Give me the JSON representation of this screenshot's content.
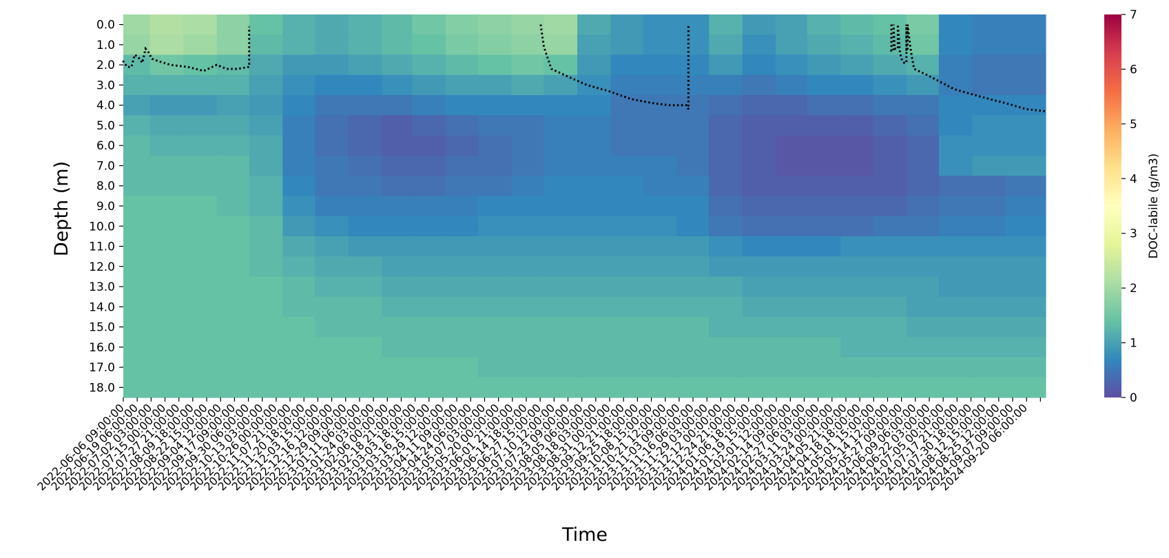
{
  "chart_data": {
    "type": "heatmap",
    "xlabel": "Time",
    "ylabel": "Depth (m)",
    "colorbar_label": "DOC-labile  (g/m3)",
    "colormap": "Spectral_r",
    "colorbar_range": [
      0,
      7
    ],
    "colorbar_ticks": [
      "0",
      "1",
      "2",
      "3",
      "4",
      "5",
      "6",
      "7"
    ],
    "x_start": "2022-06-06 09:00:00",
    "x_end": "2024-10-08 00:00:00",
    "y_tick_labels": [
      "0.0",
      "1.0",
      "2.0",
      "3.0",
      "4.0",
      "5.0",
      "6.0",
      "7.0",
      "8.0",
      "9.0",
      "10.0",
      "11.0",
      "12.0",
      "13.0",
      "14.0",
      "15.0",
      "16.0",
      "17.0",
      "18.0"
    ],
    "x_tick_labels": [
      "2022-06-06 09:00:00",
      "2022-06-19 06:00:00",
      "2022-07-02 03:00:00",
      "2022-07-15 00:00:00",
      "2022-07-27 21:00:00",
      "2022-08-09 18:00:00",
      "2022-08-22 15:00:00",
      "2022-09-04 12:00:00",
      "2022-09-17 09:00:00",
      "2022-09-30 06:00:00",
      "2022-10-13 03:00:00",
      "2022-10-26 00:00:00",
      "2022-11-07 21:00:00",
      "2022-11-20 18:00:00",
      "2022-12-03 15:00:00",
      "2022-12-16 12:00:00",
      "2022-12-29 09:00:00",
      "2023-01-11 06:00:00",
      "2023-01-24 03:00:00",
      "2023-02-06 00:00:00",
      "2023-02-18 21:00:00",
      "2023-03-03 18:00:00",
      "2023-03-16 15:00:00",
      "2023-03-29 12:00:00",
      "2023-04-11 09:00:00",
      "2023-04-24 06:00:00",
      "2023-05-07 03:00:00",
      "2023-05-20 00:00:00",
      "2023-06-01 21:00:00",
      "2023-06-14 18:00:00",
      "2023-06-27 15:00:00",
      "2023-07-10 12:00:00",
      "2023-07-23 09:00:00",
      "2023-08-05 06:00:00",
      "2023-08-18 03:00:00",
      "2023-08-31 00:00:00",
      "2023-09-12 21:00:00",
      "2023-09-25 18:00:00",
      "2023-10-08 15:00:00",
      "2023-10-21 12:00:00",
      "2023-11-03 09:00:00",
      "2023-11-16 06:00:00",
      "2023-11-29 03:00:00",
      "2023-12-12 00:00:00",
      "2023-12-24 21:00:00",
      "2024-01-06 18:00:00",
      "2024-01-19 15:00:00",
      "2024-02-01 12:00:00",
      "2024-02-14 09:00:00",
      "2024-02-27 06:00:00",
      "2024-03-11 03:00:00",
      "2024-03-24 00:00:00",
      "2024-04-05 21:00:00",
      "2024-04-18 18:00:00",
      "2024-05-01 15:00:00",
      "2024-05-14 12:00:00",
      "2024-05-27 09:00:00",
      "2024-06-09 06:00:00",
      "2024-06-22 03:00:00",
      "2024-07-05 00:00:00",
      "2024-07-17 21:00:00",
      "2024-07-30 18:00:00",
      "2024-08-12 15:00:00",
      "2024-08-25 12:00:00",
      "2024-09-07 09:00:00",
      "2024-09-20 06:00:00"
    ],
    "extra_tick_marks": 4,
    "depth_rows": [
      0,
      1,
      2,
      3,
      4,
      5,
      6,
      7,
      8,
      9,
      10,
      11,
      12,
      13,
      14,
      15,
      16,
      17,
      18
    ],
    "time_cols_months": [
      "2022-06",
      "2022-07",
      "2022-08",
      "2022-09",
      "2022-10",
      "2022-11",
      "2022-12",
      "2023-01",
      "2023-02",
      "2023-03",
      "2023-04",
      "2023-05",
      "2023-06",
      "2023-07",
      "2023-08",
      "2023-09",
      "2023-10",
      "2023-11",
      "2023-12",
      "2024-01",
      "2024-02",
      "2024-03",
      "2024-04",
      "2024-05",
      "2024-06",
      "2024-07",
      "2024-08",
      "2024-09"
    ],
    "values": [
      [
        2.0,
        2.2,
        2.1,
        1.8,
        1.4,
        1.2,
        1.1,
        1.2,
        1.3,
        1.5,
        1.7,
        1.8,
        1.9,
        2.0,
        1.1,
        0.9,
        0.8,
        0.8,
        1.2,
        0.9,
        1.0,
        1.2,
        1.3,
        1.4,
        1.6,
        0.7,
        0.6,
        0.6
      ],
      [
        1.9,
        2.1,
        2.0,
        1.8,
        1.3,
        1.2,
        1.1,
        1.2,
        1.3,
        1.4,
        1.6,
        1.7,
        1.8,
        1.9,
        1.0,
        0.9,
        0.8,
        0.8,
        1.1,
        0.8,
        1.0,
        1.1,
        1.2,
        1.3,
        1.5,
        0.7,
        0.6,
        0.6
      ],
      [
        1.3,
        1.5,
        1.4,
        1.3,
        1.1,
        0.9,
        0.9,
        1.0,
        1.1,
        1.2,
        1.3,
        1.4,
        1.5,
        1.4,
        0.9,
        0.7,
        0.7,
        0.7,
        0.9,
        0.7,
        0.8,
        0.9,
        1.0,
        1.1,
        1.2,
        0.6,
        0.5,
        0.5
      ],
      [
        1.2,
        1.2,
        1.2,
        1.2,
        1.0,
        0.8,
        0.7,
        0.7,
        0.8,
        0.9,
        1.0,
        1.0,
        1.1,
        1.0,
        0.8,
        0.6,
        0.6,
        0.6,
        0.6,
        0.5,
        0.6,
        0.7,
        0.7,
        0.8,
        0.9,
        0.6,
        0.5,
        0.5
      ],
      [
        1.0,
        0.9,
        0.9,
        1.0,
        0.9,
        0.7,
        0.5,
        0.5,
        0.5,
        0.6,
        0.7,
        0.7,
        0.7,
        0.7,
        0.7,
        0.5,
        0.5,
        0.5,
        0.4,
        0.3,
        0.3,
        0.4,
        0.4,
        0.5,
        0.5,
        0.7,
        0.7,
        0.7
      ],
      [
        1.2,
        1.1,
        1.1,
        1.1,
        1.0,
        0.6,
        0.4,
        0.3,
        0.2,
        0.3,
        0.4,
        0.5,
        0.5,
        0.6,
        0.6,
        0.5,
        0.5,
        0.5,
        0.3,
        0.2,
        0.2,
        0.2,
        0.2,
        0.3,
        0.4,
        0.7,
        0.8,
        0.8
      ],
      [
        1.3,
        1.2,
        1.2,
        1.2,
        1.1,
        0.6,
        0.4,
        0.3,
        0.2,
        0.2,
        0.3,
        0.4,
        0.5,
        0.6,
        0.6,
        0.5,
        0.5,
        0.5,
        0.3,
        0.2,
        0.1,
        0.1,
        0.1,
        0.2,
        0.3,
        0.8,
        0.8,
        0.8
      ],
      [
        1.3,
        1.3,
        1.3,
        1.3,
        1.1,
        0.6,
        0.5,
        0.4,
        0.3,
        0.3,
        0.4,
        0.4,
        0.5,
        0.6,
        0.6,
        0.6,
        0.6,
        0.5,
        0.3,
        0.2,
        0.1,
        0.1,
        0.1,
        0.2,
        0.3,
        0.8,
        0.9,
        0.9
      ],
      [
        1.3,
        1.3,
        1.3,
        1.3,
        1.2,
        0.7,
        0.5,
        0.5,
        0.4,
        0.4,
        0.5,
        0.5,
        0.6,
        0.7,
        0.7,
        0.7,
        0.6,
        0.6,
        0.3,
        0.2,
        0.2,
        0.2,
        0.2,
        0.2,
        0.3,
        0.4,
        0.4,
        0.5
      ],
      [
        1.4,
        1.4,
        1.4,
        1.3,
        1.2,
        0.8,
        0.6,
        0.6,
        0.6,
        0.6,
        0.6,
        0.7,
        0.7,
        0.7,
        0.7,
        0.7,
        0.7,
        0.7,
        0.4,
        0.3,
        0.3,
        0.3,
        0.3,
        0.3,
        0.4,
        0.5,
        0.5,
        0.6
      ],
      [
        1.4,
        1.4,
        1.4,
        1.4,
        1.3,
        0.9,
        0.8,
        0.7,
        0.7,
        0.7,
        0.7,
        0.8,
        0.8,
        0.8,
        0.8,
        0.8,
        0.8,
        0.7,
        0.5,
        0.4,
        0.4,
        0.4,
        0.4,
        0.5,
        0.5,
        0.6,
        0.6,
        0.7
      ],
      [
        1.4,
        1.4,
        1.4,
        1.4,
        1.3,
        1.1,
        1.0,
        0.9,
        0.9,
        0.9,
        0.9,
        0.9,
        0.9,
        0.9,
        0.9,
        0.9,
        0.9,
        0.9,
        0.8,
        0.7,
        0.7,
        0.7,
        0.8,
        0.8,
        0.8,
        0.8,
        0.8,
        0.8
      ],
      [
        1.4,
        1.4,
        1.4,
        1.4,
        1.3,
        1.2,
        1.1,
        1.1,
        1.0,
        1.0,
        1.0,
        1.0,
        1.0,
        1.0,
        1.0,
        1.0,
        1.0,
        1.0,
        0.9,
        0.9,
        0.9,
        0.9,
        0.9,
        0.9,
        0.9,
        0.9,
        0.9,
        0.9
      ],
      [
        1.4,
        1.4,
        1.4,
        1.4,
        1.4,
        1.3,
        1.2,
        1.2,
        1.1,
        1.1,
        1.1,
        1.1,
        1.1,
        1.1,
        1.1,
        1.1,
        1.1,
        1.1,
        1.1,
        1.0,
        1.0,
        1.0,
        1.0,
        1.0,
        1.0,
        0.9,
        0.9,
        0.9
      ],
      [
        1.4,
        1.4,
        1.4,
        1.4,
        1.4,
        1.3,
        1.3,
        1.3,
        1.2,
        1.2,
        1.2,
        1.2,
        1.2,
        1.2,
        1.2,
        1.2,
        1.2,
        1.2,
        1.2,
        1.1,
        1.1,
        1.1,
        1.1,
        1.1,
        1.0,
        1.0,
        1.0,
        1.0
      ],
      [
        1.4,
        1.4,
        1.4,
        1.4,
        1.4,
        1.4,
        1.3,
        1.3,
        1.3,
        1.3,
        1.3,
        1.3,
        1.3,
        1.3,
        1.3,
        1.3,
        1.3,
        1.3,
        1.2,
        1.2,
        1.2,
        1.2,
        1.2,
        1.2,
        1.1,
        1.1,
        1.1,
        1.1
      ],
      [
        1.4,
        1.4,
        1.4,
        1.4,
        1.4,
        1.4,
        1.4,
        1.4,
        1.3,
        1.3,
        1.3,
        1.3,
        1.3,
        1.3,
        1.3,
        1.3,
        1.3,
        1.3,
        1.3,
        1.3,
        1.3,
        1.3,
        1.2,
        1.2,
        1.2,
        1.2,
        1.2,
        1.2
      ],
      [
        1.4,
        1.4,
        1.4,
        1.4,
        1.4,
        1.4,
        1.4,
        1.4,
        1.4,
        1.4,
        1.4,
        1.3,
        1.3,
        1.3,
        1.3,
        1.3,
        1.3,
        1.3,
        1.3,
        1.3,
        1.3,
        1.3,
        1.3,
        1.3,
        1.3,
        1.3,
        1.3,
        1.3
      ],
      [
        1.4,
        1.4,
        1.4,
        1.4,
        1.4,
        1.4,
        1.4,
        1.4,
        1.4,
        1.4,
        1.4,
        1.4,
        1.4,
        1.4,
        1.4,
        1.4,
        1.4,
        1.4,
        1.4,
        1.4,
        1.4,
        1.4,
        1.4,
        1.4,
        1.4,
        1.4,
        1.4,
        1.4
      ]
    ],
    "thermocline_segments": [
      {
        "t": [
          "2022-06-06",
          "2022-06-10",
          "2022-06-14",
          "2022-06-17",
          "2022-06-20",
          "2022-06-24",
          "2022-06-27",
          "2022-06-30",
          "2022-07-03",
          "2022-07-08",
          "2022-07-20",
          "2022-08-05",
          "2022-08-20",
          "2022-09-01",
          "2022-09-10",
          "2022-09-20",
          "2022-10-01",
          "2022-10-01"
        ],
        "depth": [
          1.8,
          2.1,
          2.1,
          1.5,
          1.6,
          1.9,
          1.2,
          1.4,
          1.7,
          1.8,
          2.0,
          2.1,
          2.3,
          2.0,
          2.2,
          2.2,
          2.1,
          0.1
        ]
      },
      {
        "t": [
          "2023-06-28",
          "2023-07-01",
          "2023-07-08",
          "2023-07-20",
          "2023-08-10",
          "2023-08-30",
          "2023-09-20",
          "2023-10-10",
          "2023-10-25",
          "2023-11-10",
          "2023-11-12",
          "2023-11-12"
        ],
        "depth": [
          0.0,
          1.1,
          2.2,
          2.5,
          3.0,
          3.3,
          3.7,
          3.9,
          4.0,
          4.0,
          4.2,
          0.0
        ]
      },
      {
        "t": [
          "2024-05-18",
          "2024-05-18",
          "2024-05-20",
          "2024-05-20",
          "2024-05-21",
          "2024-05-24",
          "2024-05-24",
          "2024-05-26",
          "2024-05-28",
          "2024-05-30",
          "2024-06-01",
          "2024-06-01",
          "2024-06-01",
          "2024-06-02",
          "2024-06-02",
          "2024-06-05",
          "2024-06-08",
          "2024-06-20",
          "2024-07-15",
          "2024-08-10",
          "2024-09-01",
          "2024-09-20",
          "2024-10-08"
        ],
        "depth": [
          0.0,
          1.3,
          1.3,
          0.0,
          1.2,
          1.2,
          0.0,
          1.4,
          1.8,
          1.9,
          1.9,
          0.0,
          1.3,
          1.3,
          0.0,
          1.3,
          2.2,
          2.5,
          3.2,
          3.6,
          3.9,
          4.2,
          4.3
        ]
      }
    ]
  }
}
